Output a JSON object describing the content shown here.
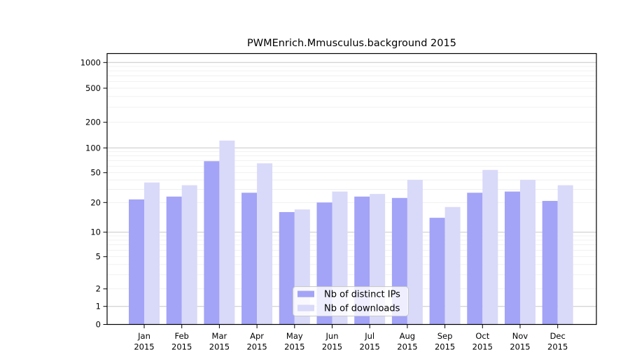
{
  "chart_data": {
    "type": "bar",
    "title": "PWMEnrich.Mmusculus.background 2015",
    "year": "2015",
    "months": [
      "Jan",
      "Feb",
      "Mar",
      "Apr",
      "May",
      "Jun",
      "Jul",
      "Aug",
      "Sep",
      "Oct",
      "Nov",
      "Dec"
    ],
    "categories": [
      "Jan 2015",
      "Feb 2015",
      "Mar 2015",
      "Apr 2015",
      "May 2015",
      "Jun 2015",
      "Jul 2015",
      "Aug 2015",
      "Sep 2015",
      "Oct 2015",
      "Nov 2015",
      "Dec 2015"
    ],
    "series": [
      {
        "name": "Nb of distinct IPs",
        "key": "distinct-ips",
        "color": "#a3a3f7",
        "values": [
          22,
          24,
          69,
          27,
          16,
          20,
          24,
          23,
          14,
          27,
          28,
          21
        ]
      },
      {
        "name": "Nb of downloads",
        "key": "downloads",
        "color": "#d9d9f9",
        "values": [
          37,
          34,
          122,
          65,
          17,
          28,
          26,
          40,
          18,
          54,
          40,
          34
        ]
      }
    ],
    "xlabel": "",
    "ylabel": "",
    "y_ticks": [
      0,
      1,
      2,
      5,
      10,
      20,
      50,
      100,
      200,
      500,
      1000
    ],
    "ylim": [
      0,
      1000
    ],
    "yscale": "log-like (log10(1+v)), 0 pinned to baseline",
    "grid": "horizontal major lines at powers of 10, faint minor log lines",
    "legend": {
      "position": "lower center"
    },
    "colors": {
      "bar_distinct_ips": "#a3a3f7",
      "bar_downloads": "#d9d9f9",
      "axis": "#000000",
      "major_grid": "#c7c7c7",
      "minor_grid": "#ededed",
      "legend_border": "#c9c9c9",
      "background": "#ffffff"
    }
  }
}
